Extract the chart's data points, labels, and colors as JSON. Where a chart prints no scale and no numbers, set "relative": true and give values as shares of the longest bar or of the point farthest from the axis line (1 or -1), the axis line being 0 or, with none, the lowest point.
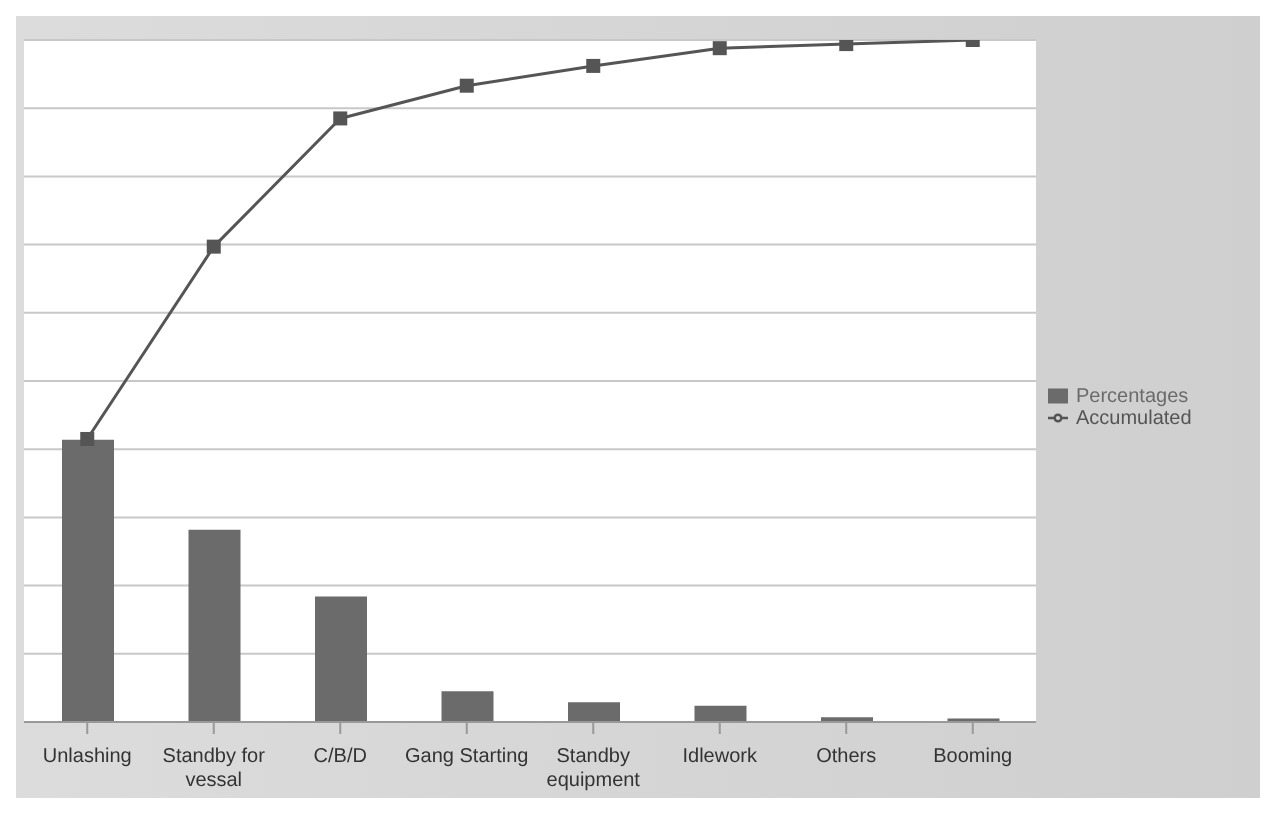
{
  "chart_data": {
    "type": "bar",
    "relative": true,
    "categories": [
      "Unlashing",
      "Standby for vessal",
      "C/B/D",
      "Gang Starting",
      "Standby equipment",
      "Idlework",
      "Others",
      "Booming"
    ],
    "series": [
      {
        "name": "Percentages",
        "color": "#6b6b6b",
        "values": [
          0.414,
          0.282,
          0.184,
          0.045,
          0.029,
          0.024,
          0.007,
          0.005
        ]
      },
      {
        "name": "Accumulated",
        "type": "line",
        "color": "#555555",
        "values": [
          0.415,
          0.697,
          0.885,
          0.933,
          0.962,
          0.988,
          0.994,
          1
        ]
      }
    ],
    "grid": "y",
    "legend": "right",
    "marker": "square",
    "line_style": "solid"
  }
}
